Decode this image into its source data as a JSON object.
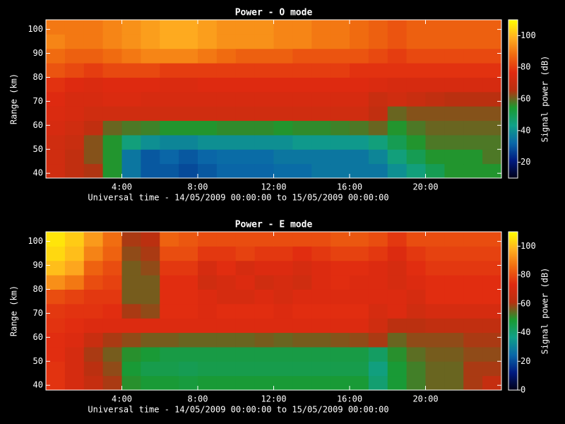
{
  "chart_data": [
    {
      "type": "heatmap",
      "title": "Power - O mode",
      "xlabel": "Universal time - 14/05/2009 00:00:00 to 15/05/2009 00:00:00",
      "ylabel": "Range (km)",
      "colorbar_label": "Signal power (dB)",
      "xbins": [
        0,
        1,
        2,
        3,
        4,
        5,
        6,
        7,
        8,
        9,
        10,
        11,
        12,
        13,
        14,
        15,
        16,
        17,
        18,
        19,
        20,
        21,
        22,
        23,
        24
      ],
      "ybins": [
        38,
        44,
        50,
        56,
        62,
        68,
        74,
        80,
        86,
        92,
        98,
        104
      ],
      "values": [
        [
          72,
          68,
          65,
          55,
          35,
          30,
          30,
          28,
          30,
          32,
          32,
          32,
          33,
          33,
          35,
          35,
          35,
          35,
          40,
          45,
          50,
          55,
          55,
          55
        ],
        [
          72,
          68,
          62,
          55,
          35,
          30,
          32,
          30,
          32,
          33,
          33,
          33,
          35,
          35,
          35,
          35,
          35,
          38,
          45,
          50,
          55,
          55,
          55,
          58
        ],
        [
          72,
          70,
          62,
          55,
          45,
          40,
          38,
          38,
          40,
          40,
          40,
          40,
          40,
          42,
          42,
          42,
          42,
          45,
          50,
          55,
          58,
          58,
          58,
          58
        ],
        [
          74,
          72,
          68,
          60,
          58,
          57,
          55,
          55,
          55,
          56,
          56,
          56,
          55,
          56,
          56,
          57,
          58,
          60,
          55,
          58,
          60,
          60,
          60,
          60
        ],
        [
          75,
          74,
          72,
          72,
          72,
          72,
          72,
          72,
          72,
          72,
          72,
          72,
          72,
          72,
          72,
          72,
          72,
          68,
          60,
          62,
          62,
          62,
          62,
          62
        ],
        [
          76,
          74,
          74,
          75,
          75,
          74,
          74,
          74,
          74,
          74,
          74,
          74,
          74,
          74,
          74,
          74,
          74,
          70,
          72,
          70,
          68,
          66,
          66,
          66
        ],
        [
          78,
          76,
          75,
          76,
          76,
          76,
          75,
          75,
          76,
          76,
          76,
          76,
          76,
          76,
          76,
          76,
          76,
          75,
          74,
          74,
          74,
          74,
          74,
          74
        ],
        [
          84,
          82,
          80,
          82,
          82,
          82,
          80,
          80,
          80,
          80,
          80,
          80,
          80,
          80,
          80,
          80,
          78,
          78,
          78,
          78,
          78,
          78,
          78,
          78
        ],
        [
          88,
          86,
          86,
          88,
          90,
          92,
          92,
          92,
          90,
          88,
          86,
          86,
          86,
          84,
          84,
          84,
          84,
          82,
          80,
          82,
          82,
          82,
          82,
          82
        ],
        [
          92,
          90,
          90,
          92,
          94,
          96,
          98,
          98,
          96,
          94,
          94,
          94,
          92,
          92,
          90,
          90,
          88,
          86,
          84,
          86,
          86,
          86,
          86,
          86
        ],
        [
          90,
          90,
          90,
          92,
          94,
          96,
          98,
          98,
          96,
          94,
          94,
          94,
          92,
          92,
          90,
          90,
          88,
          86,
          84,
          86,
          86,
          86,
          86,
          86
        ]
      ],
      "xlim": [
        0,
        24
      ],
      "xticks": [
        {
          "value": 4,
          "label": "4:00"
        },
        {
          "value": 8,
          "label": "8:00"
        },
        {
          "value": 12,
          "label": "12:00"
        },
        {
          "value": 16,
          "label": "16:00"
        },
        {
          "value": 20,
          "label": "20:00"
        }
      ],
      "ylim": [
        38,
        104
      ],
      "yticks": [
        40,
        50,
        60,
        70,
        80,
        90,
        100
      ],
      "zlim": [
        10,
        110
      ],
      "zticks": [
        20,
        40,
        60,
        80,
        100
      ],
      "colormap": [
        "#000018",
        "#001a80",
        "#0a68a8",
        "#10a088",
        "#1a9a30",
        "#b83010",
        "#e02a10",
        "#f06a10",
        "#ffb020",
        "#ffff00"
      ]
    },
    {
      "type": "heatmap",
      "title": "Power - E mode",
      "xlabel": "Universal time - 14/05/2009 00:00:00 to 15/05/2009 00:00:00",
      "ylabel": "Range (km)",
      "colorbar_label": "Signal power (dB)",
      "xbins": [
        0,
        1,
        2,
        3,
        4,
        5,
        6,
        7,
        8,
        9,
        10,
        11,
        12,
        13,
        14,
        15,
        16,
        17,
        18,
        19,
        20,
        21,
        22,
        23,
        24
      ],
      "ybins": [
        38,
        44,
        50,
        56,
        62,
        68,
        74,
        80,
        86,
        92,
        98,
        104
      ],
      "values": [
        [
          75,
          70,
          65,
          60,
          50,
          48,
          48,
          47,
          48,
          48,
          48,
          48,
          48,
          48,
          48,
          48,
          48,
          40,
          48,
          52,
          55,
          55,
          60,
          65
        ],
        [
          75,
          70,
          62,
          58,
          48,
          45,
          45,
          44,
          45,
          45,
          45,
          45,
          45,
          45,
          45,
          45,
          45,
          38,
          48,
          52,
          55,
          55,
          60,
          60
        ],
        [
          74,
          70,
          60,
          56,
          50,
          48,
          46,
          46,
          46,
          46,
          46,
          46,
          46,
          46,
          46,
          46,
          46,
          42,
          50,
          54,
          56,
          56,
          58,
          58
        ],
        [
          74,
          72,
          66,
          60,
          58,
          56,
          56,
          55,
          55,
          55,
          55,
          56,
          55,
          56,
          56,
          57,
          58,
          60,
          55,
          58,
          58,
          58,
          60,
          60
        ],
        [
          75,
          74,
          72,
          72,
          72,
          72,
          72,
          72,
          72,
          72,
          72,
          72,
          72,
          72,
          72,
          72,
          72,
          68,
          62,
          62,
          64,
          64,
          64,
          64
        ],
        [
          76,
          75,
          75,
          74,
          60,
          58,
          74,
          74,
          72,
          74,
          74,
          74,
          72,
          74,
          74,
          74,
          74,
          70,
          72,
          68,
          70,
          70,
          70,
          70
        ],
        [
          80,
          78,
          76,
          76,
          56,
          56,
          74,
          74,
          72,
          70,
          70,
          72,
          70,
          72,
          72,
          72,
          72,
          72,
          72,
          70,
          74,
          74,
          74,
          74
        ],
        [
          92,
          88,
          80,
          78,
          56,
          56,
          74,
          74,
          68,
          70,
          72,
          68,
          70,
          68,
          72,
          74,
          72,
          72,
          70,
          72,
          74,
          74,
          74,
          74
        ],
        [
          100,
          96,
          84,
          80,
          56,
          58,
          76,
          76,
          70,
          74,
          70,
          72,
          72,
          70,
          72,
          74,
          74,
          72,
          70,
          74,
          76,
          76,
          76,
          76
        ],
        [
          104,
          100,
          90,
          84,
          58,
          60,
          80,
          80,
          76,
          76,
          78,
          76,
          76,
          74,
          76,
          78,
          78,
          76,
          72,
          76,
          78,
          78,
          78,
          78
        ],
        [
          106,
          102,
          94,
          86,
          60,
          62,
          84,
          82,
          80,
          80,
          80,
          80,
          80,
          80,
          80,
          82,
          82,
          80,
          76,
          80,
          80,
          80,
          80,
          80
        ]
      ],
      "xlim": [
        0,
        24
      ],
      "xticks": [
        {
          "value": 4,
          "label": "4:00"
        },
        {
          "value": 8,
          "label": "8:00"
        },
        {
          "value": 12,
          "label": "12:00"
        },
        {
          "value": 16,
          "label": "16:00"
        },
        {
          "value": 20,
          "label": "20:00"
        }
      ],
      "ylim": [
        38,
        104
      ],
      "yticks": [
        40,
        50,
        60,
        70,
        80,
        90,
        100
      ],
      "zlim": [
        0,
        110
      ],
      "zticks": [
        0,
        20,
        40,
        60,
        80,
        100
      ],
      "colormap": [
        "#000018",
        "#001a80",
        "#0a68a8",
        "#10a088",
        "#1a9a30",
        "#b83010",
        "#e02a10",
        "#f06a10",
        "#ffb020",
        "#ffff00"
      ]
    }
  ]
}
